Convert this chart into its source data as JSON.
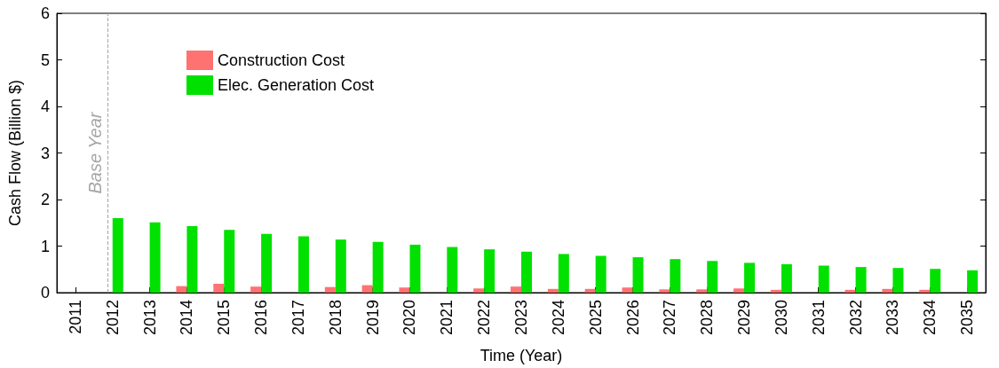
{
  "chart_data": {
    "type": "bar",
    "xlabel": "Time (Year)",
    "ylabel": "Cash Flow (Billion $)",
    "categories": [
      "2011",
      "2012",
      "2013",
      "2014",
      "2015",
      "2016",
      "2017",
      "2018",
      "2019",
      "2020",
      "2021",
      "2022",
      "2023",
      "2024",
      "2025",
      "2026",
      "2027",
      "2028",
      "2029",
      "2030",
      "2031",
      "2032",
      "2033",
      "2034",
      "2035"
    ],
    "series": [
      {
        "name": "Construction Cost",
        "color": "#ff7272",
        "values": [
          null,
          null,
          null,
          0.14,
          0.19,
          0.13,
          null,
          0.12,
          0.16,
          0.11,
          null,
          0.09,
          0.13,
          0.08,
          0.08,
          0.11,
          0.07,
          0.07,
          0.09,
          0.06,
          null,
          0.06,
          0.08,
          0.06,
          null
        ]
      },
      {
        "name": "Elec. Generation Cost",
        "color": "#00e100",
        "values": [
          null,
          1.6,
          1.51,
          1.43,
          1.35,
          1.26,
          1.21,
          1.14,
          1.09,
          1.03,
          0.98,
          0.93,
          0.88,
          0.83,
          0.79,
          0.76,
          0.72,
          0.68,
          0.64,
          0.61,
          0.58,
          0.55,
          0.53,
          0.51,
          0.48
        ]
      }
    ],
    "ylim": [
      0,
      6
    ],
    "yticks": [
      0,
      1,
      2,
      3,
      4,
      5,
      6
    ],
    "grid": false,
    "legend": "top left",
    "ref_lines": [
      {
        "axis": "x",
        "value": "2012",
        "label": "Base Year",
        "color": "#a6a6a6",
        "line_style": "dashed"
      }
    ]
  }
}
